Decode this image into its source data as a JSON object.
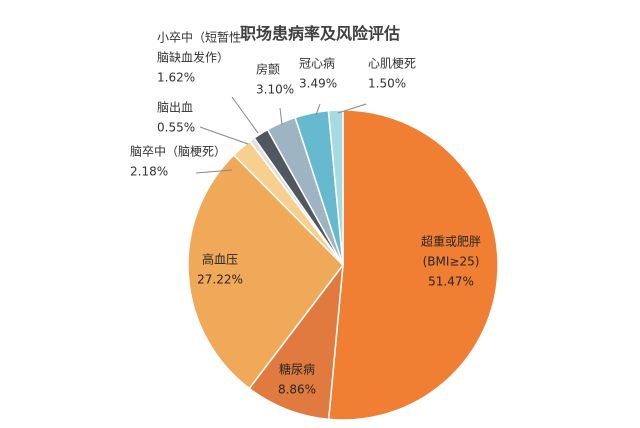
{
  "chart_data": {
    "type": "pie",
    "title": "职场患病率及风险评估",
    "series": [
      {
        "name": "超重或肥胖",
        "label_lines": [
          "超重或肥胖",
          "(BMI≥25)"
        ],
        "display_value": "51.47%",
        "value": 51.47,
        "color": "#f07f33"
      },
      {
        "name": "糖尿病",
        "label_lines": [
          "糖尿病"
        ],
        "display_value": "8.86%",
        "value": 8.86,
        "color": "#e17a3e"
      },
      {
        "name": "高血压",
        "label_lines": [
          "高血压"
        ],
        "display_value": "27.22%",
        "value": 27.22,
        "color": "#f0a959"
      },
      {
        "name": "脑卒中（脑梗死）",
        "label_lines": [
          "脑卒中（脑梗死）"
        ],
        "display_value": "2.18%",
        "value": 2.18,
        "color": "#f7cf8f"
      },
      {
        "name": "脑出血",
        "label_lines": [
          "脑出血"
        ],
        "display_value": "0.55%",
        "value": 0.55,
        "color": "#e0e0e0"
      },
      {
        "name": "小卒中（短暂性脑缺血发作）",
        "label_lines": [
          "小卒中（短暂性",
          "脑缺血发作）"
        ],
        "display_value": "1.62%",
        "value": 1.62,
        "color": "#505760"
      },
      {
        "name": "房颤",
        "label_lines": [
          "房颤"
        ],
        "display_value": "3.10%",
        "value": 3.1,
        "color": "#9fb4c3"
      },
      {
        "name": "冠心病",
        "label_lines": [
          "冠心病"
        ],
        "display_value": "3.49%",
        "value": 3.49,
        "color": "#67b9cf"
      },
      {
        "name": "心肌梗死",
        "label_lines": [
          "心肌梗死"
        ],
        "display_value": "1.50%",
        "value": 1.5,
        "color": "#a7dbe3"
      }
    ]
  }
}
